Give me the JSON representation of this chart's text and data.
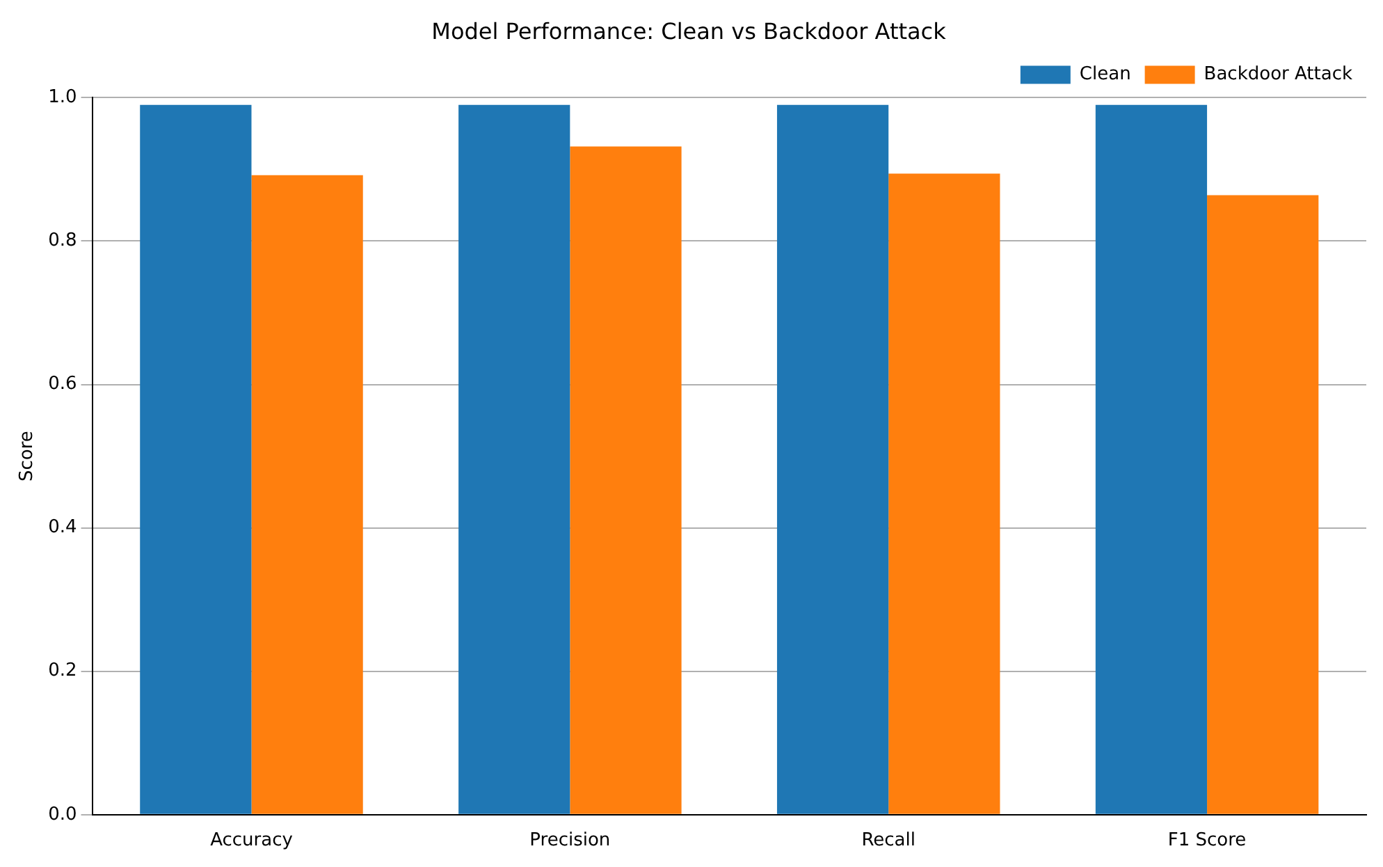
{
  "chart_data": {
    "type": "bar",
    "title": "Model Performance: Clean vs Backdoor Attack",
    "ylabel": "Score",
    "categories": [
      "Accuracy",
      "Precision",
      "Recall",
      "F1 Score"
    ],
    "series": [
      {
        "name": "Clean",
        "color": "#1f77b4",
        "values": [
          0.99,
          0.99,
          0.99,
          0.99
        ]
      },
      {
        "name": "Backdoor Attack",
        "color": "#ff7f0e",
        "values": [
          0.892,
          0.932,
          0.894,
          0.864
        ]
      }
    ],
    "ylim": [
      0,
      1
    ],
    "yticks": [
      {
        "value": 0,
        "label": "0.0"
      },
      0.2,
      0.4,
      0.6,
      0.8,
      {
        "value": 1,
        "label": "1.0"
      }
    ],
    "grid": "y",
    "legend": "top right"
  }
}
